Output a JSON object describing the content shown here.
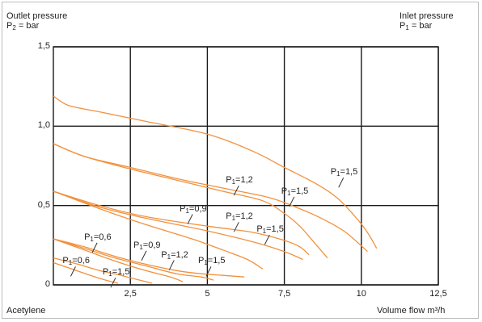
{
  "chart_data": {
    "type": "line",
    "y_title": {
      "line1": "Outlet pressure",
      "line2_prefix": "P",
      "line2_sub": "2",
      "line2_suffix": " = bar"
    },
    "series_title": {
      "line1": "Inlet pressure",
      "line2_prefix": "P",
      "line2_sub": "1",
      "line2_suffix": " = bar"
    },
    "xlabel": "Volume flow m³/h",
    "gas_label": "Acetylene",
    "xlim": [
      0,
      12.5
    ],
    "ylim": [
      0,
      1.5
    ],
    "x_ticks": [
      {
        "value": 2.5,
        "label": "2,5"
      },
      {
        "value": 5,
        "label": "5"
      },
      {
        "value": 7.5,
        "label": "7,5"
      },
      {
        "value": 10,
        "label": "10"
      },
      {
        "value": 12.5,
        "label": "12,5"
      }
    ],
    "y_ticks": [
      {
        "value": 0,
        "label": "0"
      },
      {
        "value": 0.5,
        "label": "0,5"
      },
      {
        "value": 1.0,
        "label": "1,0"
      },
      {
        "value": 1.5,
        "label": "1,5"
      }
    ],
    "grid": true,
    "line_color": "#f2913d",
    "series": [
      {
        "group": "1,5",
        "points": [
          [
            0,
            1.19
          ],
          [
            0.5,
            1.13
          ],
          [
            1.5,
            1.09
          ],
          [
            3,
            1.03
          ],
          [
            5,
            0.95
          ],
          [
            6.5,
            0.84
          ],
          [
            7.5,
            0.74
          ],
          [
            8.5,
            0.64
          ],
          [
            9.2,
            0.55
          ],
          [
            9.8,
            0.43
          ],
          [
            10.2,
            0.33
          ],
          [
            10.5,
            0.23
          ]
        ]
      },
      {
        "group": "1,5",
        "points": [
          [
            0,
            0.89
          ],
          [
            1,
            0.81
          ],
          [
            2.5,
            0.74
          ],
          [
            4,
            0.67
          ],
          [
            5.5,
            0.61
          ],
          [
            7,
            0.55
          ],
          [
            8,
            0.48
          ],
          [
            8.8,
            0.41
          ],
          [
            9.5,
            0.33
          ],
          [
            10.2,
            0.21
          ]
        ]
      },
      {
        "group": "1,2",
        "points": [
          [
            0,
            0.89
          ],
          [
            1,
            0.81
          ],
          [
            2.5,
            0.73
          ],
          [
            4,
            0.66
          ],
          [
            5.5,
            0.59
          ],
          [
            6.8,
            0.53
          ],
          [
            7.5,
            0.45
          ],
          [
            8,
            0.37
          ],
          [
            8.5,
            0.26
          ],
          [
            8.9,
            0.17
          ]
        ]
      },
      {
        "group": "1,5",
        "points": [
          [
            0,
            0.59
          ],
          [
            1.5,
            0.5
          ],
          [
            3,
            0.43
          ],
          [
            5,
            0.37
          ],
          [
            6.5,
            0.33
          ],
          [
            7.5,
            0.28
          ],
          [
            8,
            0.24
          ],
          [
            8.3,
            0.19
          ]
        ]
      },
      {
        "group": "1,2",
        "points": [
          [
            0,
            0.59
          ],
          [
            1.5,
            0.49
          ],
          [
            3,
            0.42
          ],
          [
            5,
            0.34
          ],
          [
            6.5,
            0.27
          ],
          [
            7.5,
            0.21
          ],
          [
            8.1,
            0.16
          ]
        ]
      },
      {
        "group": "0,9",
        "points": [
          [
            0,
            0.59
          ],
          [
            1.5,
            0.48
          ],
          [
            3,
            0.38
          ],
          [
            4.5,
            0.29
          ],
          [
            5.5,
            0.22
          ],
          [
            6.3,
            0.16
          ],
          [
            6.8,
            0.1
          ]
        ]
      },
      {
        "group": "1,5",
        "points": [
          [
            0,
            0.29
          ],
          [
            1,
            0.24
          ],
          [
            2,
            0.18
          ],
          [
            3,
            0.13
          ],
          [
            4,
            0.09
          ],
          [
            4.8,
            0.07
          ],
          [
            5.5,
            0.06
          ],
          [
            6.2,
            0.05
          ]
        ]
      },
      {
        "group": "1,2",
        "points": [
          [
            0,
            0.29
          ],
          [
            1,
            0.23
          ],
          [
            2,
            0.17
          ],
          [
            3,
            0.12
          ],
          [
            4,
            0.07
          ],
          [
            4.8,
            0.05
          ],
          [
            5.2,
            0.03
          ]
        ]
      },
      {
        "group": "0,9",
        "points": [
          [
            0,
            0.29
          ],
          [
            1,
            0.22
          ],
          [
            2,
            0.15
          ],
          [
            3,
            0.09
          ],
          [
            3.8,
            0.05
          ],
          [
            4.2,
            0.02
          ]
        ]
      },
      {
        "group": "0,6",
        "points": [
          [
            0,
            0.17
          ],
          [
            0.8,
            0.13
          ],
          [
            1.5,
            0.09
          ],
          [
            2.2,
            0.06
          ],
          [
            2.8,
            0.03
          ],
          [
            3.2,
            0.01
          ]
        ]
      },
      {
        "group": "0,6",
        "points": [
          [
            0,
            0.14
          ],
          [
            0.6,
            0.1
          ],
          [
            1.2,
            0.06
          ],
          [
            1.7,
            0.03
          ],
          [
            2.1,
            0.01
          ]
        ]
      }
    ],
    "annotations": [
      {
        "prefix": "P",
        "sub": "1",
        "value": "=1,5",
        "at": [
          9.0,
          0.68
        ]
      },
      {
        "prefix": "P",
        "sub": "1",
        "value": "=1,5",
        "at": [
          7.4,
          0.56
        ]
      },
      {
        "prefix": "P",
        "sub": "1",
        "value": "=1,2",
        "at": [
          5.6,
          0.63
        ]
      },
      {
        "prefix": "P",
        "sub": "1",
        "value": "=1,2",
        "at": [
          5.6,
          0.4
        ]
      },
      {
        "prefix": "P",
        "sub": "1",
        "value": "=0,9",
        "at": [
          4.1,
          0.45
        ]
      },
      {
        "prefix": "P",
        "sub": "1",
        "value": "=1,5",
        "at": [
          6.6,
          0.32
        ]
      },
      {
        "prefix": "P",
        "sub": "1",
        "value": "=0,6",
        "at": [
          1.0,
          0.27
        ]
      },
      {
        "prefix": "P",
        "sub": "1",
        "value": "=0,9",
        "at": [
          2.6,
          0.22
        ]
      },
      {
        "prefix": "P",
        "sub": "1",
        "value": "=1,2",
        "at": [
          3.5,
          0.16
        ]
      },
      {
        "prefix": "P",
        "sub": "1",
        "value": "=1,5",
        "at": [
          4.7,
          0.12
        ]
      },
      {
        "prefix": "P",
        "sub": "1",
        "value": "=0,6",
        "at": [
          0.3,
          0.12
        ]
      },
      {
        "prefix": "P",
        "sub": "1",
        "value": "=1,5",
        "at": [
          1.6,
          0.05
        ]
      }
    ]
  }
}
